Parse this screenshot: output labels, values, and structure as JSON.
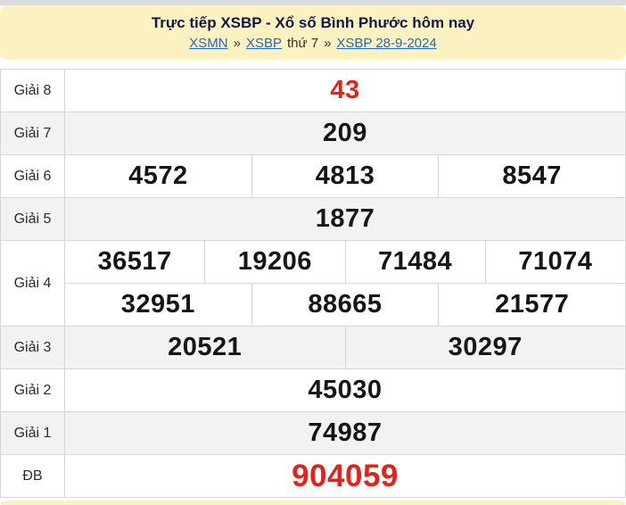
{
  "header": {
    "title": "Trực tiếp XSBP - Xổ số Bình Phước hôm nay",
    "breadcrumb": [
      {
        "label": "XSMN",
        "link": true
      },
      {
        "label": "»",
        "link": false
      },
      {
        "label": "XSBP",
        "link": true
      },
      {
        "label": "thứ 7",
        "link": false
      },
      {
        "label": "»",
        "link": false
      },
      {
        "label": "XSBP 28-9-2024",
        "link": true
      }
    ]
  },
  "results": {
    "rows": [
      {
        "name": "giai-8",
        "label": "Giải 8",
        "red": true,
        "big": false,
        "shade": false,
        "cells": [
          [
            "43"
          ]
        ]
      },
      {
        "name": "giai-7",
        "label": "Giải 7",
        "red": false,
        "big": false,
        "shade": true,
        "cells": [
          [
            "209"
          ]
        ]
      },
      {
        "name": "giai-6",
        "label": "Giải 6",
        "red": false,
        "big": false,
        "shade": false,
        "cells": [
          [
            "4572",
            "4813",
            "8547"
          ]
        ]
      },
      {
        "name": "giai-5",
        "label": "Giải 5",
        "red": false,
        "big": false,
        "shade": true,
        "cells": [
          [
            "1877"
          ]
        ]
      },
      {
        "name": "giai-4",
        "label": "Giải 4",
        "red": false,
        "big": false,
        "shade": false,
        "cells": [
          [
            "36517",
            "19206",
            "71484",
            "71074"
          ],
          [
            "32951",
            "88665",
            "21577"
          ]
        ]
      },
      {
        "name": "giai-3",
        "label": "Giải 3",
        "red": false,
        "big": false,
        "shade": true,
        "cells": [
          [
            "20521",
            "30297"
          ]
        ]
      },
      {
        "name": "giai-2",
        "label": "Giải 2",
        "red": false,
        "big": false,
        "shade": false,
        "cells": [
          [
            "45030"
          ]
        ]
      },
      {
        "name": "giai-1",
        "label": "Giải 1",
        "red": false,
        "big": false,
        "shade": true,
        "cells": [
          [
            "74987"
          ]
        ]
      },
      {
        "name": "db",
        "label": "ĐB",
        "red": true,
        "big": true,
        "shade": false,
        "cells": [
          [
            "904059"
          ]
        ]
      }
    ]
  },
  "colors": {
    "header_bg": "#fcf2c1",
    "top_strip": "#dcdcde",
    "title_color": "#161645",
    "link_color": "#1f6bb5",
    "accent_red": "#e2231a",
    "shade_bg": "#f2f2f2",
    "border_color": "#d5d5d5"
  }
}
